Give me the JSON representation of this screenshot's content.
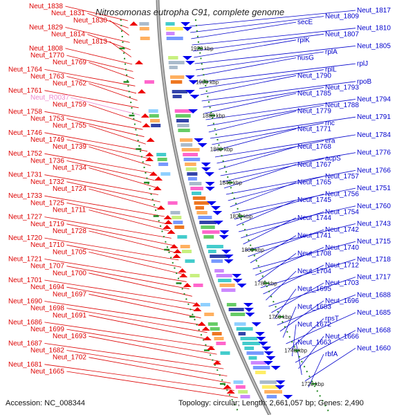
{
  "title": "Nitrosomonas eutropha C91, complete genome",
  "accession": "Accession: NC_008344",
  "topology": "Topology: circular; Length: 2,661,057 bp; Genes: 2,490",
  "colors": {
    "left_label": "#dd0000",
    "right_label": "#0000cc",
    "rna_label": "#ee88cc",
    "backbone": "#888888",
    "frame_dots": "#228822",
    "minus_arrow": "#ee0000",
    "plus_arrow": "#0000ee"
  },
  "scale_ticks": [
    "1920 kbp",
    "1900 kbp",
    "1880 kbp",
    "1860 kbp",
    "1840 kbp",
    "1820 kbp",
    "1800 kbp",
    "1780 kbp",
    "1760 kbp",
    "1740 kbp",
    "1720 kbp"
  ],
  "left_labels": [
    {
      "text": "Neut_1838"
    },
    {
      "text": "Neut_1831"
    },
    {
      "text": "Neut_1830"
    },
    {
      "text": "Neut_1829"
    },
    {
      "text": "Neut_1814"
    },
    {
      "text": "Neut_1813"
    },
    {
      "text": "Neut_1808"
    },
    {
      "text": "Neut_1770"
    },
    {
      "text": "Neut_1769"
    },
    {
      "text": "Neut_1764"
    },
    {
      "text": "Neut_1763"
    },
    {
      "text": "Neut_1762"
    },
    {
      "text": "Neut_1761"
    },
    {
      "text": "Neut_R0037",
      "rna": true
    },
    {
      "text": "Neut_1759"
    },
    {
      "text": "Neut_1758"
    },
    {
      "text": "Neut_1753"
    },
    {
      "text": "Neut_1755"
    },
    {
      "text": "Neut_1746"
    },
    {
      "text": "Neut_1749"
    },
    {
      "text": "Neut_1739"
    },
    {
      "text": "Neut_1752"
    },
    {
      "text": "Neut_1736"
    },
    {
      "text": "Neut_1734"
    },
    {
      "text": "Neut_1731"
    },
    {
      "text": "Neut_1732"
    },
    {
      "text": "Neut_1724"
    },
    {
      "text": "Neut_1733"
    },
    {
      "text": "Neut_1725"
    },
    {
      "text": "Neut_1711"
    },
    {
      "text": "Neut_1727"
    },
    {
      "text": "Neut_1719"
    },
    {
      "text": "Neut_1728"
    },
    {
      "text": "Neut_1720"
    },
    {
      "text": "Neut_1710"
    },
    {
      "text": "Neut_1705"
    },
    {
      "text": "Neut_1721"
    },
    {
      "text": "Neut_1707"
    },
    {
      "text": "Neut_1700"
    },
    {
      "text": "Neut_1701"
    },
    {
      "text": "Neut_1694"
    },
    {
      "text": "Neut_1697"
    },
    {
      "text": "Neut_1690"
    },
    {
      "text": "Neut_1698"
    },
    {
      "text": "Neut_1691"
    },
    {
      "text": "Neut_1686"
    },
    {
      "text": "Neut_1699"
    },
    {
      "text": "Neut_1693"
    },
    {
      "text": "Neut_1687"
    },
    {
      "text": "Neut_1682"
    },
    {
      "text": "Neut_1702"
    },
    {
      "text": "Neut_1681"
    },
    {
      "text": "Neut_1665"
    }
  ],
  "right_labels": [
    {
      "text": "Neut_1817"
    },
    {
      "text": "Neut_1809"
    },
    {
      "text": "secE"
    },
    {
      "text": "Neut_1810"
    },
    {
      "text": "Neut_1807"
    },
    {
      "text": "rplK"
    },
    {
      "text": "Neut_1805"
    },
    {
      "text": "rplA"
    },
    {
      "text": "nusG"
    },
    {
      "text": "rplJ"
    },
    {
      "text": "rplL"
    },
    {
      "text": "Neut_1790"
    },
    {
      "text": "rpoB"
    },
    {
      "text": "Neut_1793"
    },
    {
      "text": "Neut_1785"
    },
    {
      "text": "Neut_1794"
    },
    {
      "text": "Neut_1788"
    },
    {
      "text": "Neut_1779"
    },
    {
      "text": "Neut_1791"
    },
    {
      "text": "rnc"
    },
    {
      "text": "Neut_1771"
    },
    {
      "text": "Neut_1784"
    },
    {
      "text": "era"
    },
    {
      "text": "Neut_1768"
    },
    {
      "text": "Neut_1776"
    },
    {
      "text": "acpS"
    },
    {
      "text": "Neut_1767"
    },
    {
      "text": "Neut_1766"
    },
    {
      "text": "Neut_1757"
    },
    {
      "text": "Neut_1765"
    },
    {
      "text": "Neut_1751"
    },
    {
      "text": "Neut_1756"
    },
    {
      "text": "Neut_1745"
    },
    {
      "text": "Neut_1760"
    },
    {
      "text": "Neut_1754"
    },
    {
      "text": "Neut_1744"
    },
    {
      "text": "Neut_1743"
    },
    {
      "text": "Neut_1742"
    },
    {
      "text": "Neut_1741"
    },
    {
      "text": "Neut_1715"
    },
    {
      "text": "Neut_1740"
    },
    {
      "text": "Neut_1708"
    },
    {
      "text": "Neut_1718"
    },
    {
      "text": "Neut_1712"
    },
    {
      "text": "Neut_1704"
    },
    {
      "text": "Neut_1717"
    },
    {
      "text": "Neut_1703"
    },
    {
      "text": "Neut_1695"
    },
    {
      "text": "Neut_1688"
    },
    {
      "text": "Neut_1696"
    },
    {
      "text": "Neut_1683"
    },
    {
      "text": "Neut_1685"
    },
    {
      "text": "rpsT"
    },
    {
      "text": "Neut_1672"
    },
    {
      "text": "Neut_1668"
    },
    {
      "text": "Neut_1666"
    },
    {
      "text": "Neut_1663"
    },
    {
      "text": "Neut_1660"
    },
    {
      "text": "rbfA"
    }
  ]
}
